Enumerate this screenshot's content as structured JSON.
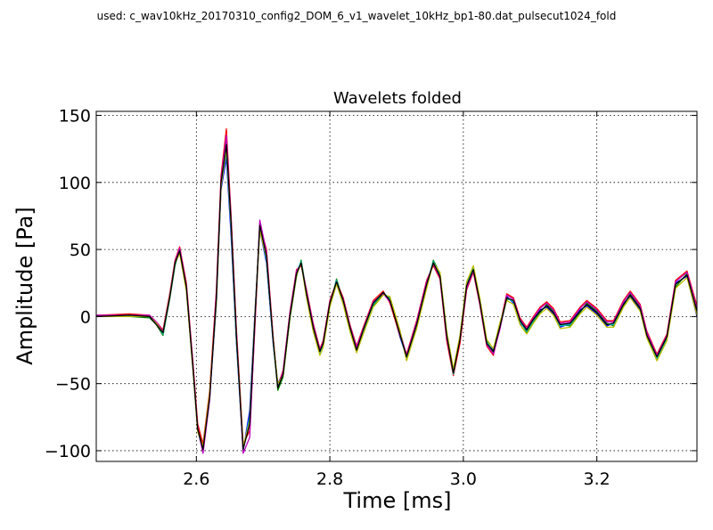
{
  "header": {
    "used_text": "used: c_wav10kHz_20170310_config2_DOM_6_v1_wavelet_10kHz_bp1-80.dat_pulsecut1024_fold"
  },
  "chart_data": {
    "type": "line",
    "title": "Wavelets folded",
    "xlabel": "Time [ms]",
    "ylabel": "Amplitude [Pa]",
    "xlim": [
      2.45,
      3.35
    ],
    "ylim": [
      -108,
      153
    ],
    "xticks": [
      2.6,
      2.8,
      3.0,
      3.2
    ],
    "xtick_labels": [
      "2.6",
      "2.8",
      "3.0",
      "3.2"
    ],
    "yticks": [
      -100,
      -50,
      0,
      50,
      100,
      150
    ],
    "ytick_labels": [
      "−100",
      "−50",
      "0",
      "50",
      "100",
      "150"
    ],
    "grid": true,
    "x": [
      2.45,
      2.5,
      2.53,
      2.54,
      2.55,
      2.56,
      2.568,
      2.575,
      2.585,
      2.595,
      2.602,
      2.61,
      2.62,
      2.63,
      2.637,
      2.645,
      2.652,
      2.66,
      2.67,
      2.68,
      2.688,
      2.695,
      2.705,
      2.715,
      2.722,
      2.73,
      2.74,
      2.75,
      2.757,
      2.765,
      2.775,
      2.785,
      2.79,
      2.8,
      2.81,
      2.82,
      2.83,
      2.84,
      2.85,
      2.865,
      2.88,
      2.89,
      2.905,
      2.915,
      2.93,
      2.945,
      2.955,
      2.965,
      2.975,
      2.985,
      2.995,
      3.005,
      3.015,
      3.025,
      3.035,
      3.045,
      3.055,
      3.065,
      3.075,
      3.085,
      3.095,
      3.105,
      3.115,
      3.125,
      3.135,
      3.145,
      3.16,
      3.175,
      3.185,
      3.2,
      3.215,
      3.225,
      3.24,
      3.25,
      3.265,
      3.275,
      3.29,
      3.305,
      3.318,
      3.335,
      3.35
    ],
    "series": [
      {
        "color": "#0000ff",
        "values": [
          1,
          1,
          0,
          -5,
          -12,
          15,
          40,
          48,
          20,
          -40,
          -85,
          -100,
          -60,
          10,
          95,
          118,
          60,
          -20,
          -100,
          -70,
          5,
          65,
          40,
          -20,
          -50,
          -42,
          0,
          32,
          40,
          15,
          -10,
          -28,
          -20,
          10,
          25,
          10,
          -10,
          -25,
          -10,
          10,
          18,
          12,
          -15,
          -30,
          -5,
          25,
          40,
          30,
          -15,
          -42,
          -15,
          25,
          35,
          10,
          -20,
          -25,
          -5,
          15,
          10,
          -5,
          -10,
          -2,
          5,
          7,
          2,
          -8,
          -5,
          5,
          8,
          2,
          -7,
          -5,
          10,
          15,
          5,
          -15,
          -30,
          -15,
          25,
          30,
          0
        ]
      },
      {
        "color": "#008000",
        "values": [
          0,
          0,
          -1,
          -6,
          -14,
          13,
          38,
          50,
          22,
          -38,
          -82,
          -98,
          -58,
          15,
          100,
          130,
          70,
          -15,
          -98,
          -80,
          0,
          70,
          45,
          -18,
          -55,
          -45,
          -2,
          30,
          42,
          18,
          -8,
          -26,
          -22,
          8,
          28,
          12,
          -8,
          -26,
          -12,
          8,
          17,
          14,
          -12,
          -32,
          -8,
          22,
          42,
          32,
          -12,
          -40,
          -18,
          22,
          37,
          12,
          -18,
          -27,
          -8,
          13,
          12,
          -3,
          -12,
          -4,
          3,
          9,
          4,
          -6,
          -7,
          3,
          10,
          4,
          -5,
          -7,
          8,
          17,
          7,
          -13,
          -32,
          -17,
          22,
          32,
          5
        ]
      },
      {
        "color": "#ff0000",
        "values": [
          1,
          2,
          1,
          -4,
          -10,
          17,
          42,
          52,
          25,
          -35,
          -80,
          -95,
          -55,
          20,
          105,
          140,
          75,
          -10,
          -95,
          -85,
          -5,
          68,
          50,
          -15,
          -52,
          -40,
          3,
          35,
          38,
          20,
          -5,
          -24,
          -18,
          12,
          26,
          14,
          -6,
          -22,
          -8,
          12,
          19,
          10,
          -14,
          -28,
          -3,
          27,
          38,
          28,
          -18,
          -44,
          -20,
          20,
          33,
          8,
          -22,
          -29,
          -6,
          17,
          14,
          -1,
          -8,
          0,
          7,
          11,
          6,
          -4,
          -3,
          7,
          12,
          6,
          -3,
          -3,
          12,
          19,
          9,
          -11,
          -28,
          -13,
          27,
          34,
          8
        ]
      },
      {
        "color": "#00bfbf",
        "values": [
          0,
          1,
          0,
          -5,
          -13,
          14,
          39,
          49,
          21,
          -39,
          -84,
          -99,
          -59,
          12,
          98,
          122,
          65,
          -18,
          -99,
          -75,
          2,
          66,
          42,
          -19,
          -51,
          -43,
          1,
          33,
          41,
          16,
          -9,
          -27,
          -21,
          9,
          27,
          11,
          -9,
          -24,
          -11,
          9,
          18,
          13,
          -13,
          -31,
          -6,
          24,
          41,
          31,
          -14,
          -43,
          -16,
          24,
          36,
          11,
          -19,
          -26,
          -7,
          14,
          11,
          -4,
          -11,
          -3,
          4,
          8,
          3,
          -7,
          -6,
          4,
          9,
          3,
          -6,
          -6,
          9,
          16,
          6,
          -14,
          -31,
          -16,
          24,
          31,
          2
        ]
      },
      {
        "color": "#bf00bf",
        "values": [
          1,
          1,
          1,
          -4,
          -11,
          16,
          41,
          51,
          23,
          -37,
          -83,
          -102,
          -62,
          18,
          102,
          135,
          72,
          -12,
          -102,
          -90,
          -2,
          72,
          48,
          -16,
          -53,
          -41,
          2,
          34,
          39,
          19,
          -6,
          -25,
          -19,
          11,
          25,
          13,
          -7,
          -23,
          -9,
          11,
          17,
          11,
          -11,
          -29,
          -4,
          26,
          39,
          29,
          -16,
          -41,
          -17,
          21,
          34,
          9,
          -21,
          -28,
          -9,
          16,
          13,
          -2,
          -9,
          -1,
          6,
          10,
          5,
          -5,
          -4,
          6,
          11,
          5,
          -4,
          -4,
          11,
          18,
          8,
          -12,
          -29,
          -14,
          26,
          33,
          6
        ]
      },
      {
        "color": "#bfbf00",
        "values": [
          0,
          0,
          0,
          -5,
          -12,
          15,
          40,
          47,
          19,
          -41,
          -86,
          -97,
          -57,
          11,
          97,
          125,
          68,
          -16,
          -97,
          -78,
          3,
          64,
          44,
          -17,
          -50,
          -44,
          -1,
          31,
          40,
          14,
          -11,
          -29,
          -23,
          7,
          24,
          9,
          -11,
          -27,
          -13,
          7,
          16,
          15,
          -10,
          -33,
          -9,
          21,
          40,
          33,
          -11,
          -39,
          -14,
          26,
          38,
          13,
          -17,
          -24,
          -4,
          12,
          9,
          -6,
          -13,
          -5,
          2,
          6,
          1,
          -9,
          -8,
          2,
          7,
          1,
          -8,
          -8,
          7,
          14,
          4,
          -16,
          -33,
          -18,
          21,
          29,
          1
        ]
      },
      {
        "color": "#000000",
        "values": [
          0,
          1,
          0,
          -6,
          -12,
          14,
          40,
          49,
          22,
          -39,
          -84,
          -99,
          -60,
          14,
          100,
          128,
          70,
          -15,
          -99,
          -80,
          1,
          68,
          45,
          -18,
          -53,
          -43,
          0,
          32,
          40,
          17,
          -8,
          -26,
          -20,
          10,
          26,
          12,
          -8,
          -25,
          -10,
          10,
          18,
          12,
          -13,
          -30,
          -6,
          24,
          40,
          30,
          -14,
          -42,
          -17,
          23,
          35,
          10,
          -20,
          -26,
          -7,
          14,
          12,
          -3,
          -10,
          -2,
          4,
          8,
          3,
          -6,
          -5,
          4,
          9,
          3,
          -6,
          -5,
          9,
          16,
          6,
          -14,
          -30,
          -15,
          24,
          31,
          4
        ]
      }
    ]
  }
}
